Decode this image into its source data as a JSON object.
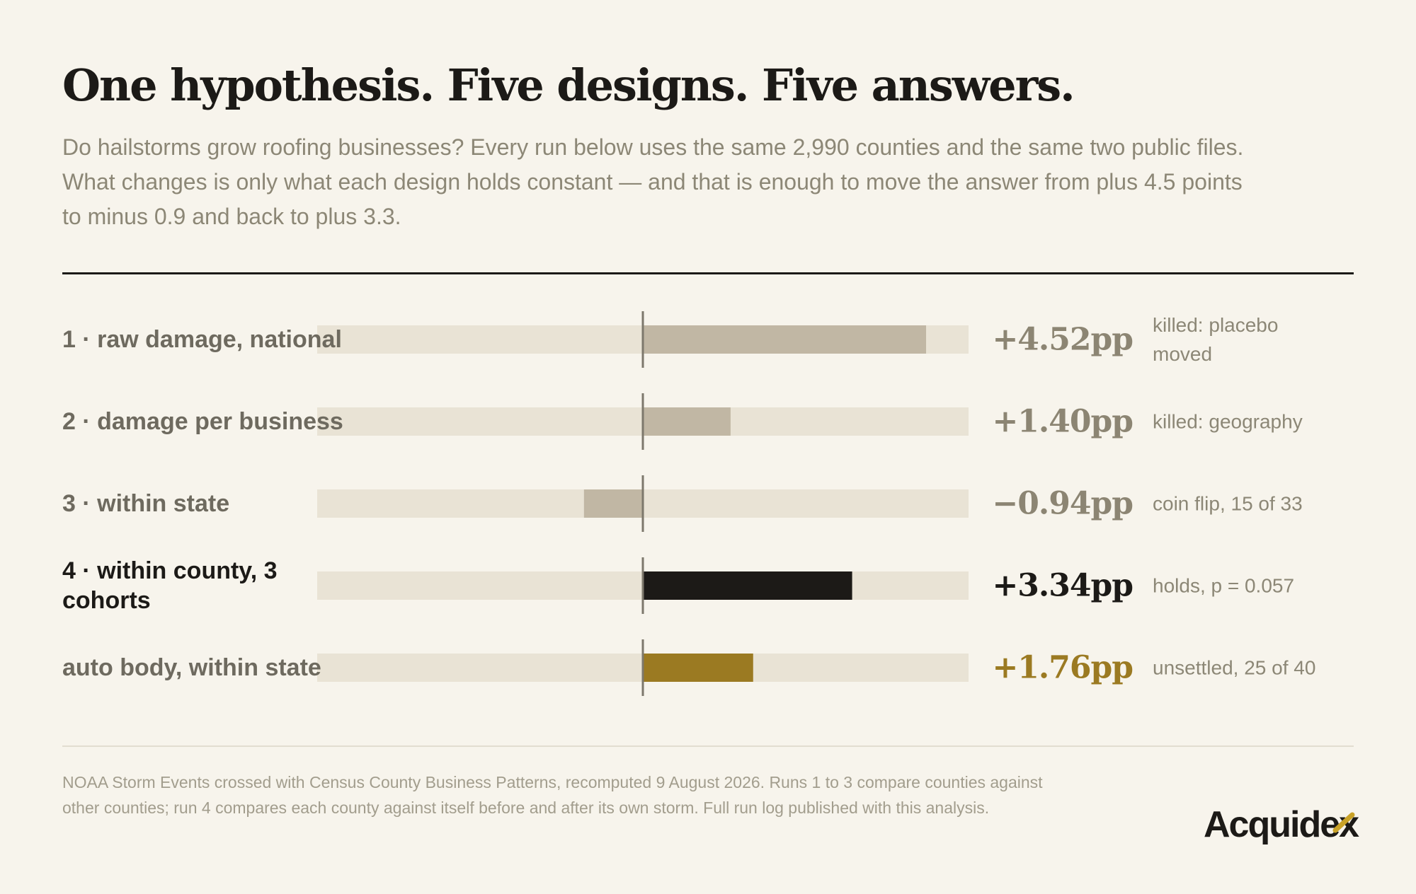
{
  "header": {
    "title": "One hypothesis. Five designs. Five answers.",
    "subtitle": "Do hailstorms grow roofing businesses? Every run below uses the same 2,990 counties and the same two public files. What changes is only what each design holds constant — and that is enough to move the answer from plus 4.5 points to minus 0.9 and back to plus 3.3."
  },
  "chart_data": {
    "type": "bar",
    "orientation": "horizontal",
    "categories": [
      "1 · raw damage, national",
      "2 · damage per business",
      "3 · within state",
      "4 · within county, 3 cohorts",
      "auto body, within state"
    ],
    "values": [
      4.52,
      1.4,
      -0.94,
      3.34,
      1.76
    ],
    "value_labels": [
      "+4.52pp",
      "+1.40pp",
      "−0.94pp",
      "+3.34pp",
      "+1.76pp"
    ],
    "notes": [
      "killed: placebo moved",
      "killed: geography",
      "coin flip, 15 of 33",
      "holds, p = 0.057",
      "unsettled, 25 of 40"
    ],
    "xlim": [
      -5,
      5
    ],
    "colors": {
      "track": "#e9e3d5",
      "muted_bar": "#c1b7a4",
      "highlight_bar": "#1c1a17",
      "accent_bar": "#9b7a22",
      "zero_line": "#7d786c",
      "muted_label": "#8c8573",
      "muted_category": "#6e6a5f",
      "note_text": "#8c8776"
    },
    "row_styles": [
      "muted",
      "muted",
      "muted",
      "highlight",
      "accent"
    ]
  },
  "footer": {
    "note": "NOAA Storm Events crossed with Census County Business Patterns, recomputed 9 August 2026. Runs 1 to 3 compare counties against other counties; run 4 compares each county against itself before and after its own storm. Full run log published with this analysis.",
    "logo": "Acquidex"
  },
  "brand": {
    "accent": "#c9a227"
  }
}
